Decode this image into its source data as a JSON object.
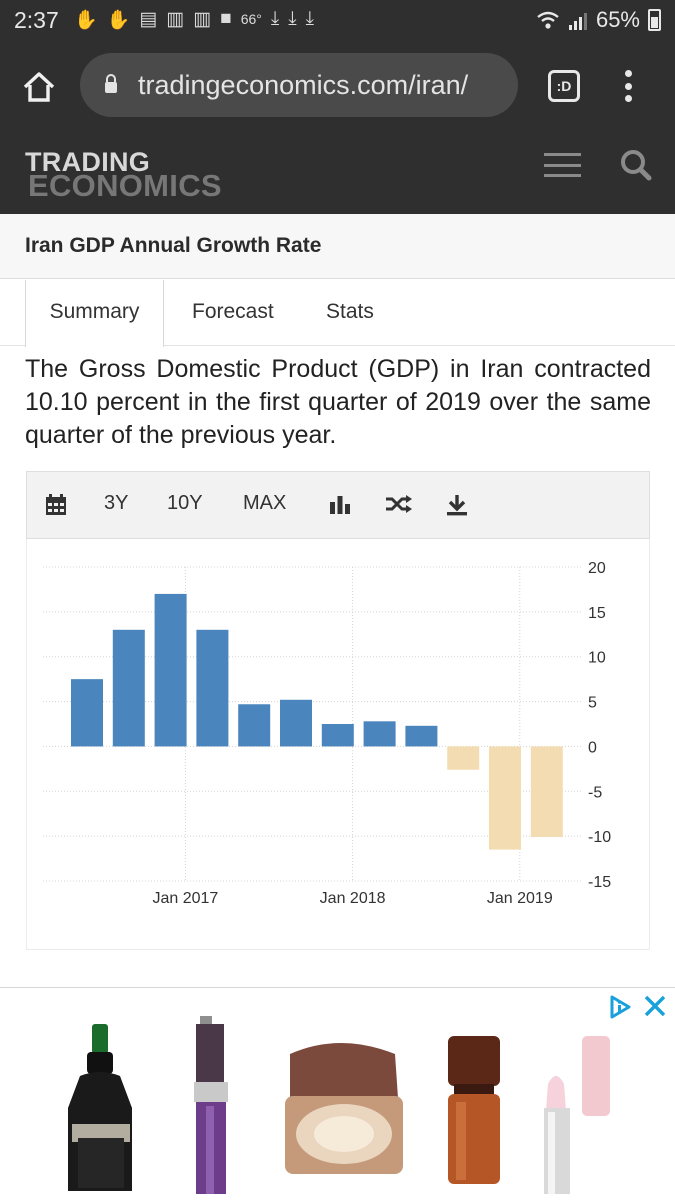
{
  "status_bar": {
    "time": "2:37",
    "temperature": "66°",
    "battery": "65%",
    "notification_icons": [
      "hand-icon",
      "hand-icon",
      "clipboard-icon",
      "news-icon",
      "news-icon",
      "folder-icon"
    ],
    "download_icons": 3
  },
  "browser": {
    "url": "tradingeconomics.com/iran/",
    "tab_button": ":D"
  },
  "site": {
    "logo_line1": "TRADING",
    "logo_line2": "ECONOMICS"
  },
  "page": {
    "title": "Iran GDP Annual Growth Rate",
    "tabs": [
      "Summary",
      "Forecast",
      "Stats"
    ],
    "active_tab": "Summary",
    "summary": "The Gross Domestic Product (GDP) in Iran contracted 10.10 percent in the first quarter of 2019 over the same quarter of the previous year."
  },
  "chart_toolbar": {
    "range_options": [
      "3Y",
      "10Y",
      "MAX"
    ],
    "icons": [
      "calendar-icon",
      "bar-chart-icon",
      "shuffle-icon",
      "download-icon"
    ]
  },
  "chart_data": {
    "type": "bar",
    "x": [
      "2016 Q2",
      "2016 Q3",
      "2016 Q4",
      "2017 Q1",
      "2017 Q2",
      "2017 Q3",
      "2017 Q4",
      "2018 Q1",
      "2018 Q2",
      "2018 Q3",
      "2018 Q4",
      "2019 Q1"
    ],
    "values": [
      7.5,
      13,
      17,
      13,
      4.7,
      5.2,
      2.5,
      2.8,
      2.3,
      -2.6,
      -11.5,
      -10.1
    ],
    "x_tick_labels": [
      "Jan 2017",
      "Jan 2018",
      "Jan 2019"
    ],
    "x_tick_categories": [
      "2017 Q1",
      "2018 Q1",
      "2019 Q1"
    ],
    "y_ticks": [
      20,
      15,
      10,
      5,
      0,
      -5,
      -10,
      -15
    ],
    "ylim": [
      -15,
      20
    ],
    "y_axis_side": "right",
    "grid": true,
    "colors": {
      "positive": "#4a85bd",
      "negative": "#f3dcb1"
    }
  },
  "ad": {
    "badge_icons": [
      "adchoices-icon",
      "close-icon"
    ],
    "product_images": [
      "serum-bottle-image",
      "mascara-image",
      "compact-powder-image",
      "foundation-bottle-image",
      "lip-balm-image"
    ]
  }
}
